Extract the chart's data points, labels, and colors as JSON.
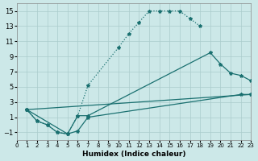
{
  "xlabel": "Humidex (Indice chaleur)",
  "bg_color": "#cce8e8",
  "grid_color": "#aacccc",
  "line_color": "#1a7070",
  "xlim": [
    0,
    23
  ],
  "ylim": [
    -2,
    16
  ],
  "xticks": [
    0,
    1,
    2,
    3,
    4,
    5,
    6,
    7,
    8,
    9,
    10,
    11,
    12,
    13,
    14,
    15,
    16,
    17,
    18,
    19,
    20,
    21,
    22,
    23
  ],
  "yticks": [
    -1,
    1,
    3,
    5,
    7,
    9,
    11,
    13,
    15
  ],
  "line1_x": [
    1,
    2,
    3,
    4,
    5,
    6,
    7,
    10,
    11,
    12,
    13,
    14,
    15,
    16,
    17,
    18
  ],
  "line1_y": [
    2.0,
    0.5,
    0.0,
    -1.0,
    -1.2,
    1.2,
    5.2,
    10.2,
    12.0,
    13.5,
    15.0,
    15.0,
    15.0,
    15.0,
    14.0,
    13.0
  ],
  "line2_x": [
    1,
    2,
    3,
    4,
    5,
    6,
    7,
    19,
    20,
    21,
    22,
    23
  ],
  "line2_y": [
    2.0,
    0.5,
    0.0,
    -1.0,
    -1.2,
    1.2,
    1.2,
    9.5,
    8.0,
    6.8,
    6.5,
    5.8
  ],
  "line3_x": [
    1,
    5,
    6,
    7,
    22,
    23
  ],
  "line3_y": [
    2.0,
    -1.2,
    -0.8,
    1.0,
    4.0,
    4.0
  ],
  "line4_x": [
    1,
    23
  ],
  "line4_y": [
    2.0,
    4.0
  ],
  "markersize": 3.0,
  "linewidth": 0.9
}
